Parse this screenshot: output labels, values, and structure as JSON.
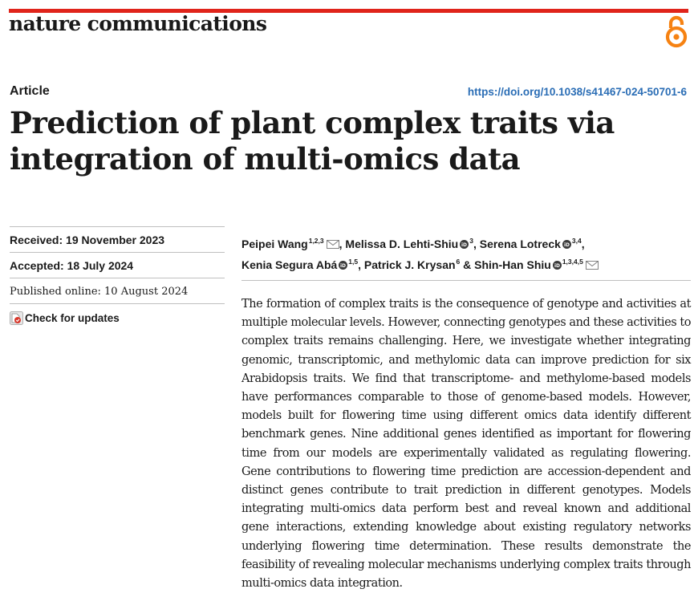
{
  "header": {
    "journal_name": "nature communications",
    "accent_color": "#e0241b",
    "open_access_icon": "open-access-lock-icon",
    "open_access_color": "#f68212"
  },
  "article": {
    "type": "Article",
    "doi": "https://doi.org/10.1038/s41467-024-50701-6",
    "title": "Prediction of plant complex traits via integration of multi-omics data"
  },
  "dates": {
    "received_label": "Received:",
    "received_value": "19 November 2023",
    "accepted_label": "Accepted:",
    "accepted_value": "18 July 2024",
    "published": "Published online: 10 August 2024"
  },
  "updates": {
    "label": "Check for updates",
    "icon": "check-for-updates-icon"
  },
  "authors": [
    {
      "name": "Peipei Wang",
      "affil": "1,2,3",
      "orcid": false,
      "email": true,
      "sep": ", "
    },
    {
      "name": "Melissa D. Lehti-Shiu",
      "affil": "3",
      "orcid": true,
      "email": false,
      "sep": ", "
    },
    {
      "name": "Serena Lotreck",
      "affil": "3,4",
      "orcid": true,
      "email": false,
      "sep": ","
    },
    {
      "name": "Kenia Segura Abá",
      "affil": "1,5",
      "orcid": true,
      "email": false,
      "sep": ", "
    },
    {
      "name": "Patrick J. Krysan",
      "affil": "6",
      "orcid": false,
      "email": false,
      "sep": " & "
    },
    {
      "name": "Shin-Han Shiu",
      "affil": "1,3,4,5",
      "orcid": true,
      "email": true,
      "sep": ""
    }
  ],
  "abstract": "The formation of complex traits is the consequence of genotype and activities at multiple molecular levels. However, connecting genotypes and these activities to complex traits remains challenging. Here, we investigate whether integrating genomic, transcriptomic, and methylomic data can improve pre­diction for six Arabidopsis traits. We find that transcriptome- and methylome-based models have performances comparable to those of genome-based models. However, models built for flowering time using different omics data identify different benchmark genes. Nine additional genes identified as important for flowering time from our models are experimentally validated as regulating flowering. Gene contributions to flowering time prediction are accession-dependent and distinct genes contribute to trait prediction in dif­ferent genotypes. Models integrating multi-omics data perform best and reveal known and additional gene interactions, extending knowledge about existing regulatory networks underlying flowering time determination. These results demonstrate the feasibility of revealing molecular mechanisms underlying complex traits through multi-omics data integration."
}
